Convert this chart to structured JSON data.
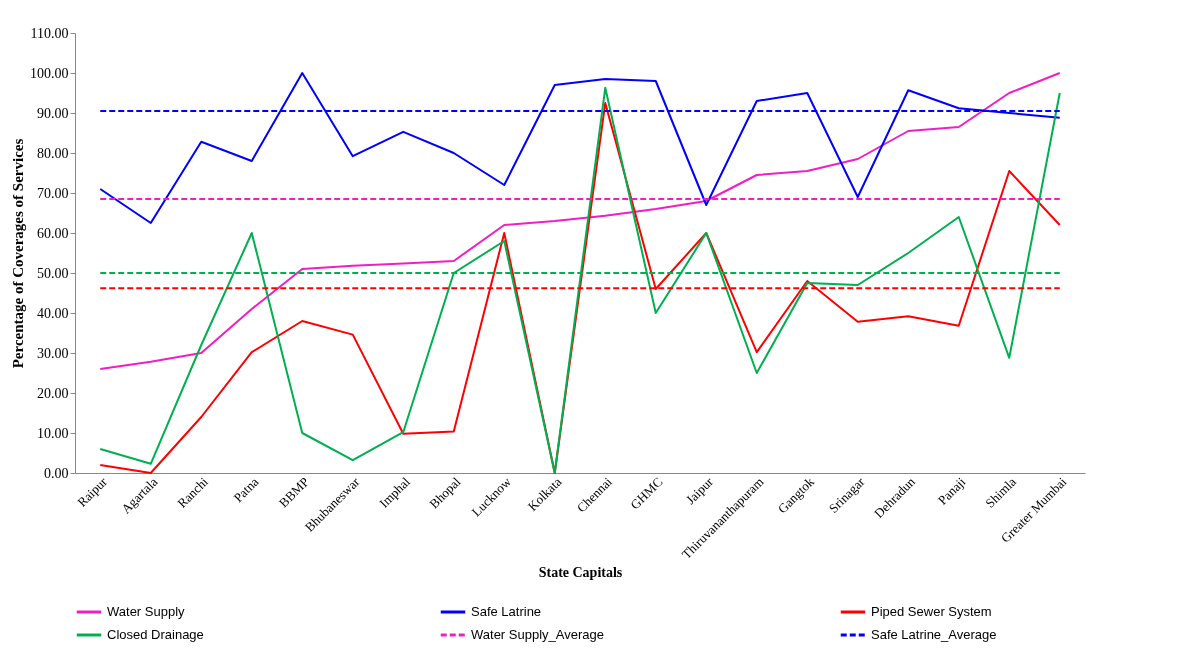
{
  "chart_data": {
    "type": "line",
    "xlabel": "State Capitals",
    "ylabel": "Percentage of Coverages of Services",
    "categories": [
      "Raipur",
      "Agartala",
      "Ranchi",
      "Patna",
      "BBMP",
      "Bhubaneswar",
      "Imphal",
      "Bhopal",
      "Lucknow",
      "Kolkata",
      "Chennai",
      "GHMC",
      "Jaipur",
      "Thiruvananthapuram",
      "Gangtok",
      "Srinagar",
      "Dehradun",
      "Panaji",
      "Shimla",
      "Greater Mumbai"
    ],
    "series": [
      {
        "name": "Water Supply",
        "color": "#f01ec4",
        "values": [
          26,
          27.8,
          30,
          41,
          51,
          51.8,
          52.4,
          53,
          62,
          63,
          64.3,
          66,
          68,
          74.5,
          75.5,
          78.5,
          85.5,
          86.5,
          95,
          100
        ]
      },
      {
        "name": "Safe Latrine",
        "color": "#0000ff",
        "values": [
          71,
          62.5,
          82.8,
          78,
          100,
          79.2,
          85.3,
          80,
          72,
          97,
          98.5,
          98,
          67,
          93,
          95,
          69,
          95.7,
          91.2,
          90,
          88.8
        ]
      },
      {
        "name": "Piped Sewer System",
        "color": "#ff0000",
        "values": [
          2,
          0,
          14,
          30.2,
          38,
          34.6,
          9.8,
          10.4,
          60,
          0,
          92.5,
          46,
          60,
          30.2,
          48,
          37.8,
          39.2,
          36.8,
          75.5,
          62
        ]
      },
      {
        "name": "Closed Drainage",
        "color": "#00b050",
        "values": [
          6,
          2.3,
          32,
          60,
          10,
          3.2,
          10.2,
          50,
          58,
          0,
          96.3,
          40,
          60,
          25,
          47.5,
          47,
          55,
          64,
          28.8,
          95
        ]
      },
      {
        "name": "Water Supply_Average",
        "color": "#f01ec4",
        "line_style": "dashed",
        "values": [
          68.5,
          68.5,
          68.5,
          68.5,
          68.5,
          68.5,
          68.5,
          68.5,
          68.5,
          68.5,
          68.5,
          68.5,
          68.5,
          68.5,
          68.5,
          68.5,
          68.5,
          68.5,
          68.5,
          68.5
        ]
      },
      {
        "name": "Safe Latrine_Average",
        "color": "#0000ff",
        "line_style": "dashed",
        "values": [
          90.5,
          90.5,
          90.5,
          90.5,
          90.5,
          90.5,
          90.5,
          90.5,
          90.5,
          90.5,
          90.5,
          90.5,
          90.5,
          90.5,
          90.5,
          90.5,
          90.5,
          90.5,
          90.5,
          90.5
        ]
      }
    ],
    "ref_lines": [
      {
        "axis": "y",
        "value": 50,
        "color": "#00b050",
        "line_style": "dashed"
      },
      {
        "axis": "y",
        "value": 46.2,
        "color": "#ff0000",
        "line_style": "dashed"
      }
    ],
    "ylim": [
      0,
      110
    ],
    "yticks": [
      {
        "value": 0,
        "label": "0.00"
      },
      {
        "value": 10,
        "label": "10.00"
      },
      {
        "value": 20,
        "label": "20.00"
      },
      {
        "value": 30,
        "label": "30.00"
      },
      {
        "value": 40,
        "label": "40.00"
      },
      {
        "value": 50,
        "label": "50.00"
      },
      {
        "value": 60,
        "label": "60.00"
      },
      {
        "value": 70,
        "label": "70.00"
      },
      {
        "value": 80,
        "label": "80.00"
      },
      {
        "value": 90,
        "label": "90.00"
      },
      {
        "value": 100,
        "label": "100.00"
      },
      {
        "value": 110,
        "label": "110.00"
      }
    ],
    "grid": false,
    "legend": "bottom",
    "line_style": "solid",
    "marker": "none"
  }
}
